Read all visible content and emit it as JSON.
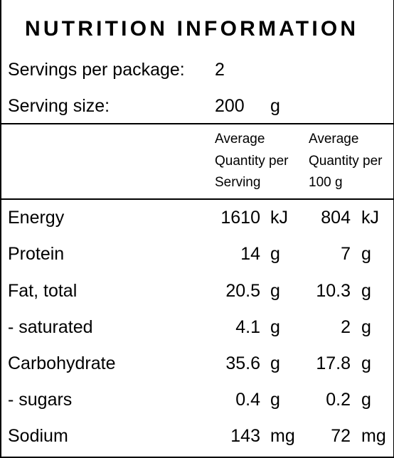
{
  "panel": {
    "title": "NUTRITION INFORMATION",
    "servings_label": "Servings per package:",
    "servings_value": "2",
    "serving_size_label": "Serving size:",
    "serving_size_value": "200",
    "serving_size_unit": "g"
  },
  "headers": {
    "col1": "Average\nQuantity per\nServing",
    "col2": "Average\nQuantity per\n100 g"
  },
  "rows": [
    {
      "name": "Energy",
      "per_serving": "1610",
      "unit1": "kJ",
      "per_100g": "804",
      "unit2": "kJ"
    },
    {
      "name": "Protein",
      "per_serving": "14",
      "unit1": "g",
      "per_100g": "7",
      "unit2": "g"
    },
    {
      "name": "Fat, total",
      "per_serving": "20.5",
      "unit1": "g",
      "per_100g": "10.3",
      "unit2": "g"
    },
    {
      "name": "- saturated",
      "per_serving": "4.1",
      "unit1": "g",
      "per_100g": "2",
      "unit2": "g"
    },
    {
      "name": "Carbohydrate",
      "per_serving": "35.6",
      "unit1": "g",
      "per_100g": "17.8",
      "unit2": "g"
    },
    {
      "name": "- sugars",
      "per_serving": "0.4",
      "unit1": "g",
      "per_100g": "0.2",
      "unit2": "g"
    },
    {
      "name": "Sodium",
      "per_serving": "143",
      "unit1": "mg",
      "per_100g": "72",
      "unit2": "mg"
    }
  ]
}
